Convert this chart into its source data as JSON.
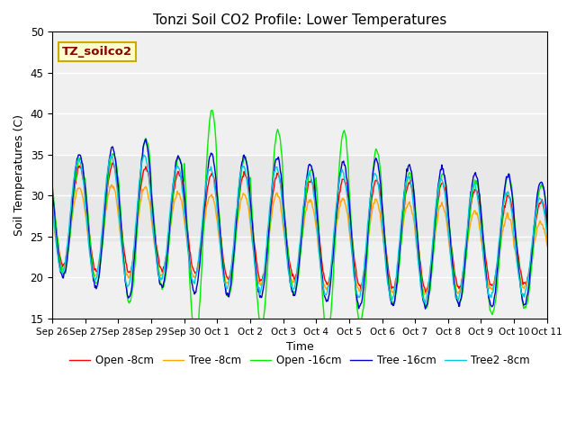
{
  "title": "Tonzi Soil CO2 Profile: Lower Temperatures",
  "ylabel": "Soil Temperatures (C)",
  "xlabel": "Time",
  "ylim": [
    15,
    50
  ],
  "annotation": "TZ_soilco2",
  "shading": [
    24.5,
    35.0
  ],
  "background_color": "#ffffff",
  "plot_bg_color": "#f0f0f0",
  "legend": [
    {
      "label": "Open -8cm",
      "color": "#ff0000"
    },
    {
      "label": "Tree -8cm",
      "color": "#ffa500"
    },
    {
      "label": "Open -16cm",
      "color": "#00ee00"
    },
    {
      "label": "Tree -16cm",
      "color": "#0000cc"
    },
    {
      "label": "Tree2 -8cm",
      "color": "#00ccdd"
    }
  ],
  "tick_labels": [
    "Sep 26",
    "Sep 27",
    "Sep 28",
    "Sep 29",
    "Sep 30",
    "Oct 1",
    "Oct 2",
    "Oct 3",
    "Oct 4",
    "Oct 5",
    "Oct 6",
    "Oct 7",
    "Oct 8",
    "Oct 9",
    "Oct 10",
    "Oct 11"
  ],
  "yticks": [
    15,
    20,
    25,
    30,
    35,
    40,
    45,
    50
  ],
  "num_days": 16,
  "points_per_day": 48,
  "peak_phase": 0.58,
  "series": {
    "open8": {
      "base_s": 27.5,
      "base_e": 24.0,
      "phase": 0.0,
      "amps": [
        6.0,
        6.5,
        6.5,
        6.0,
        6.0,
        6.5,
        6.5,
        6.0,
        6.5,
        6.5,
        6.5,
        6.5,
        6.0,
        5.5,
        5.0,
        5.0
      ]
    },
    "tree8": {
      "base_s": 26.0,
      "base_e": 22.5,
      "phase": 0.02,
      "amps": [
        5.0,
        5.5,
        5.5,
        5.0,
        5.0,
        5.5,
        5.5,
        5.0,
        5.5,
        5.5,
        5.5,
        5.5,
        5.0,
        4.5,
        4.0,
        4.0
      ]
    },
    "open16": {
      "base_s": 27.5,
      "base_e": 23.5,
      "phase": -0.01,
      "amps": [
        7.0,
        8.0,
        10.0,
        8.0,
        14.0,
        8.5,
        12.0,
        7.5,
        12.5,
        10.5,
        8.0,
        8.0,
        7.5,
        8.5,
        7.5,
        6.0
      ]
    },
    "tree16": {
      "base_s": 27.5,
      "base_e": 24.0,
      "phase": 0.01,
      "amps": [
        7.5,
        8.5,
        9.5,
        8.0,
        8.5,
        8.5,
        8.5,
        8.0,
        8.5,
        9.0,
        8.5,
        8.5,
        8.0,
        8.0,
        7.5,
        6.5
      ]
    },
    "tree2_8": {
      "base_s": 27.5,
      "base_e": 23.5,
      "phase": 0.04,
      "amps": [
        7.0,
        7.5,
        8.0,
        7.0,
        7.0,
        7.5,
        7.5,
        7.0,
        7.5,
        7.5,
        7.5,
        7.5,
        7.0,
        6.5,
        6.0,
        5.5
      ]
    }
  }
}
